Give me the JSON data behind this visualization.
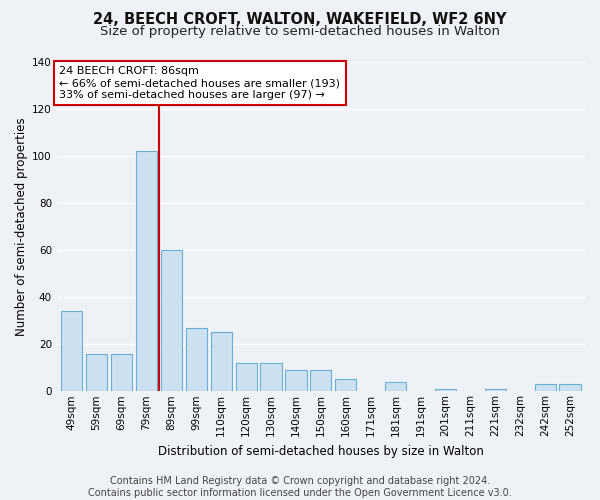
{
  "title": "24, BEECH CROFT, WALTON, WAKEFIELD, WF2 6NY",
  "subtitle": "Size of property relative to semi-detached houses in Walton",
  "xlabel": "Distribution of semi-detached houses by size in Walton",
  "ylabel": "Number of semi-detached properties",
  "categories": [
    "49sqm",
    "59sqm",
    "69sqm",
    "79sqm",
    "89sqm",
    "99sqm",
    "110sqm",
    "120sqm",
    "130sqm",
    "140sqm",
    "150sqm",
    "160sqm",
    "171sqm",
    "181sqm",
    "191sqm",
    "201sqm",
    "211sqm",
    "221sqm",
    "232sqm",
    "242sqm",
    "252sqm"
  ],
  "values": [
    34,
    16,
    16,
    102,
    60,
    27,
    25,
    12,
    12,
    9,
    9,
    5,
    0,
    4,
    0,
    1,
    0,
    1,
    0,
    3,
    3
  ],
  "bar_color": "#cce0f0",
  "bar_edge_color": "#6aafd6",
  "annotation_text_line1": "24 BEECH CROFT: 86sqm",
  "annotation_text_line2": "← 66% of semi-detached houses are smaller (193)",
  "annotation_text_line3": "33% of semi-detached houses are larger (97) →",
  "ylim": [
    0,
    140
  ],
  "yticks": [
    0,
    20,
    40,
    60,
    80,
    100,
    120,
    140
  ],
  "marker_line_color": "#cc0000",
  "box_edge_color": "#cc0000",
  "footer_line1": "Contains HM Land Registry data © Crown copyright and database right 2024.",
  "footer_line2": "Contains public sector information licensed under the Open Government Licence v3.0.",
  "background_color": "#eef2f7",
  "plot_background_color": "#eef2f7",
  "title_fontsize": 10.5,
  "subtitle_fontsize": 9.5,
  "axis_label_fontsize": 8.5,
  "tick_fontsize": 7.5,
  "annotation_fontsize": 8,
  "footer_fontsize": 7
}
